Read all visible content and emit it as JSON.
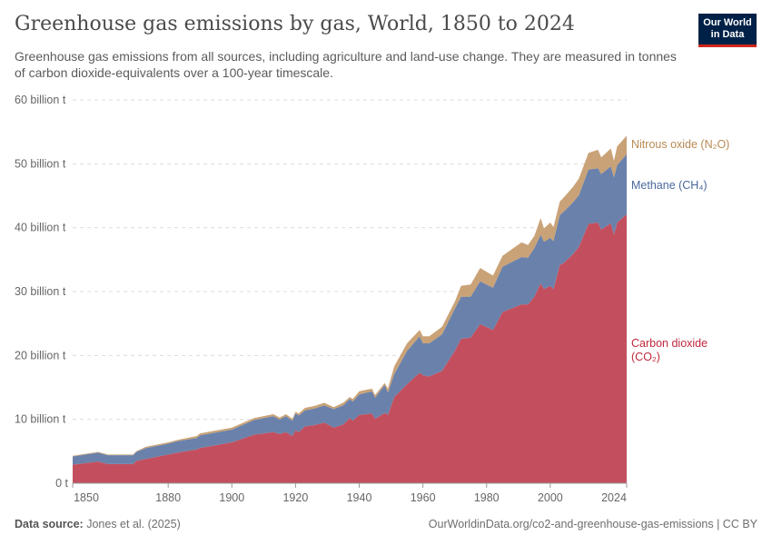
{
  "header": {
    "title": "Greenhouse gas emissions by gas, World, 1850 to 2024",
    "subtitle": "Greenhouse gas emissions from all sources, including agriculture and land-use change. They are measured in tonnes of carbon dioxide-equivalents over a 100-year timescale.",
    "logo": "Our World in Data"
  },
  "footer": {
    "source_label": "Data source:",
    "source": "Jones et al. (2025)",
    "url": "OurWorldinData.org/co2-and-greenhouse-gas-emissions | CC BY"
  },
  "colors": {
    "co2": "#c34f5e",
    "ch4": "#6a82ab",
    "n2o": "#c9a277",
    "co2_label": "#c0283e",
    "ch4_label": "#4a689c",
    "n2o_label": "#b98a53"
  },
  "chart_data": {
    "type": "area",
    "stacked": true,
    "title": "Greenhouse gas emissions by gas, World, 1850 to 2024",
    "ylim": [
      0,
      60
    ],
    "xlim": [
      1850,
      2024
    ],
    "y_ticks": [
      {
        "v": 0,
        "label": "0 t"
      },
      {
        "v": 10,
        "label": "10 billion t"
      },
      {
        "v": 20,
        "label": "20 billion t"
      },
      {
        "v": 30,
        "label": "30 billion t"
      },
      {
        "v": 40,
        "label": "40 billion t"
      },
      {
        "v": 50,
        "label": "50 billion t"
      },
      {
        "v": 60,
        "label": "60 billion t"
      }
    ],
    "x_ticks": [
      1850,
      1880,
      1900,
      1920,
      1940,
      1960,
      1980,
      2000,
      2024
    ],
    "grid": "horizontal dashed",
    "legend": "right, inline labels",
    "unit": "billion t CO2-eq",
    "x": [
      1850,
      1858,
      1861,
      1869,
      1870,
      1873,
      1880,
      1883,
      1889,
      1890,
      1900,
      1907,
      1913,
      1915,
      1917,
      1919,
      1920,
      1921,
      1923,
      1926,
      1929,
      1932,
      1935,
      1937,
      1938,
      1940,
      1944,
      1945,
      1948,
      1949,
      1951,
      1955,
      1959,
      1960,
      1962,
      1966,
      1970,
      1972,
      1975,
      1978,
      1982,
      1985,
      1991,
      1993,
      1995,
      1997,
      1998,
      2000,
      2001,
      2003,
      2004,
      2007,
      2009,
      2012,
      2015,
      2016,
      2019,
      2020,
      2021,
      2024
    ],
    "series": [
      {
        "name": "Carbon dioxide (CO₂)",
        "key": "co2",
        "values": [
          2.9,
          3.4,
          3.0,
          3.0,
          3.5,
          3.8,
          4.5,
          4.8,
          5.3,
          5.5,
          6.4,
          7.6,
          8.0,
          7.7,
          8.0,
          7.4,
          8.3,
          8.0,
          8.9,
          9.1,
          9.5,
          8.7,
          9.2,
          10.2,
          9.8,
          10.7,
          10.9,
          10.1,
          11.0,
          10.7,
          13.5,
          15.5,
          17.3,
          16.9,
          16.7,
          17.6,
          20.7,
          22.6,
          22.8,
          24.9,
          24.0,
          26.8,
          28.0,
          28.0,
          29.2,
          31.3,
          30.4,
          30.9,
          30.4,
          34.2,
          34.4,
          35.8,
          37.0,
          40.6,
          40.8,
          39.7,
          40.7,
          38.9,
          40.8,
          42.1
        ]
      },
      {
        "name": "Methane (CH₄)",
        "key": "ch4",
        "values": [
          1.3,
          1.4,
          1.4,
          1.4,
          1.4,
          1.7,
          1.7,
          1.8,
          1.8,
          2.0,
          2.0,
          2.3,
          2.5,
          2.3,
          2.5,
          2.4,
          2.6,
          2.6,
          2.5,
          2.6,
          2.7,
          2.9,
          3.0,
          3.0,
          3.0,
          3.2,
          3.5,
          3.3,
          4.4,
          3.5,
          3.6,
          5.2,
          5.7,
          5.0,
          5.2,
          5.7,
          6.6,
          6.6,
          6.4,
          6.7,
          6.6,
          7.1,
          7.4,
          7.3,
          7.6,
          7.6,
          7.4,
          7.5,
          7.5,
          7.8,
          8.0,
          8.1,
          8.1,
          8.5,
          8.5,
          8.7,
          8.9,
          9.0,
          9.0,
          9.4
        ]
      },
      {
        "name": "Nitrous oxide (N₂O)",
        "key": "n2o",
        "values": [
          0.1,
          0.1,
          0.1,
          0.1,
          0.1,
          0.2,
          0.2,
          0.2,
          0.3,
          0.3,
          0.3,
          0.3,
          0.3,
          0.3,
          0.3,
          0.3,
          0.3,
          0.3,
          0.4,
          0.4,
          0.4,
          0.3,
          0.4,
          0.3,
          0.4,
          0.5,
          0.4,
          0.4,
          0.3,
          0.6,
          1.2,
          1.2,
          1.0,
          1.1,
          1.1,
          1.2,
          1.1,
          1.7,
          1.9,
          2.1,
          1.9,
          1.7,
          2.3,
          2.0,
          1.9,
          2.6,
          2.1,
          2.4,
          2.2,
          2.1,
          2.2,
          2.4,
          2.6,
          2.6,
          2.9,
          2.6,
          2.8,
          2.6,
          2.9,
          2.9
        ]
      }
    ],
    "labels": {
      "n2o": "Nitrous oxide (N₂O)",
      "ch4": "Methane (CH₄)",
      "co2_line1": "Carbon dioxide",
      "co2_line2": "(CO₂)"
    }
  }
}
